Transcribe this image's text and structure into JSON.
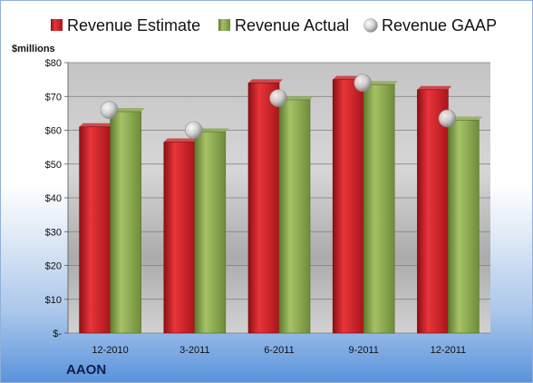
{
  "chart_data": {
    "type": "bar",
    "categories": [
      "12-2010",
      "3-2011",
      "6-2011",
      "9-2011",
      "12-2011"
    ],
    "series": [
      {
        "name": "Revenue Estimate",
        "values": [
          61,
          56.5,
          74,
          75,
          72
        ],
        "color": "#cc1f26"
      },
      {
        "name": "Revenue Actual",
        "values": [
          65.5,
          59.5,
          69,
          73.5,
          63
        ],
        "color": "#8aa84d"
      }
    ],
    "markers": {
      "name": "Revenue GAAP",
      "values": [
        66,
        60,
        69.5,
        74,
        63.5
      ],
      "color": "#c9c9c9"
    },
    "ylabel": "$millions",
    "ylim": [
      0,
      80
    ],
    "yticks": [
      0,
      10,
      20,
      30,
      40,
      50,
      60,
      70,
      80
    ],
    "ytick_labels": [
      "$-",
      "$10",
      "$20",
      "$30",
      "$40",
      "$50",
      "$60",
      "$70",
      "$80"
    ],
    "grid": true,
    "legend_position": "top"
  },
  "company": "AAON"
}
